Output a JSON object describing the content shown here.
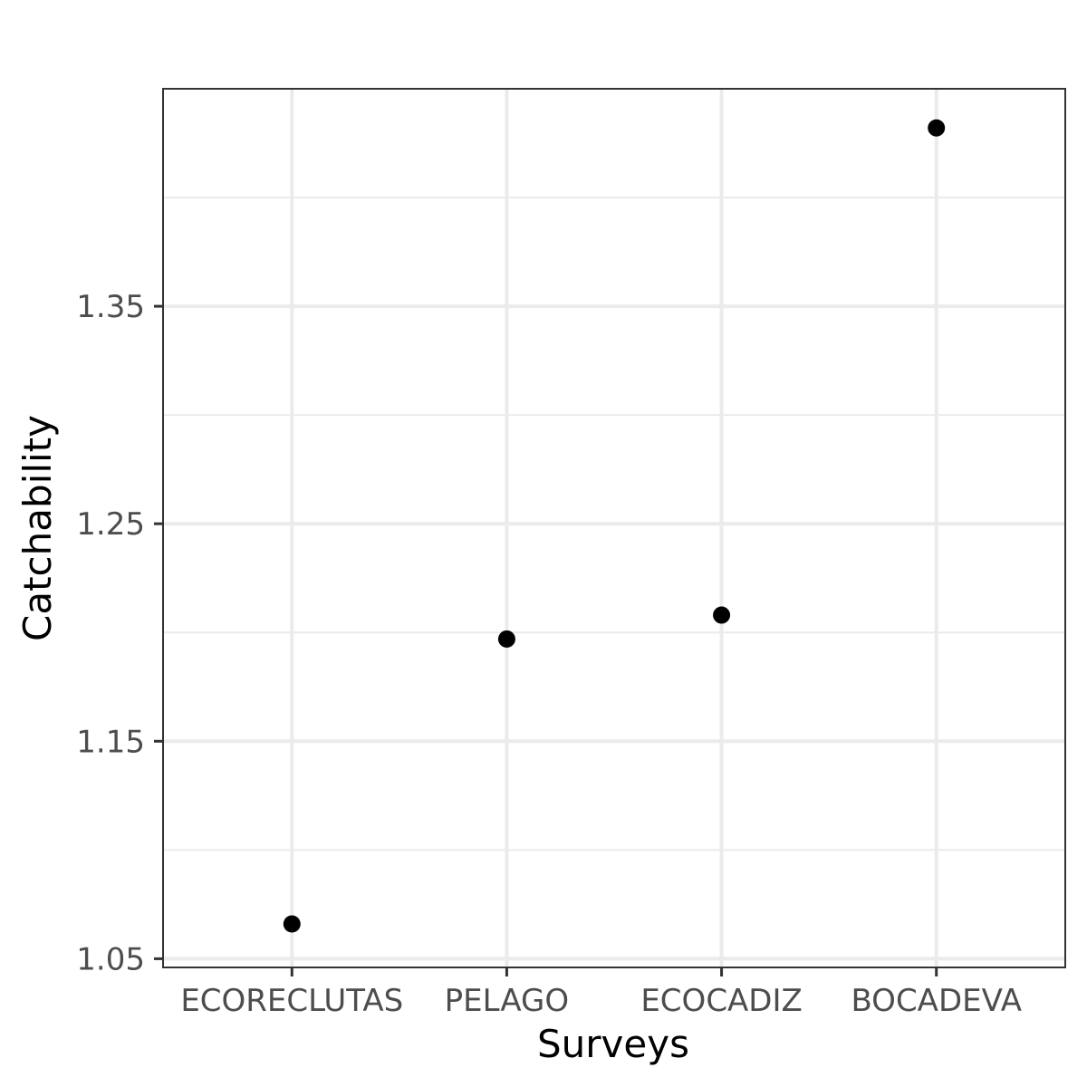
{
  "chart_data": {
    "type": "scatter",
    "title": "",
    "xlabel": "Surveys",
    "ylabel": "Catchability",
    "categories": [
      "ECORECLUTAS",
      "PELAGO",
      "ECOCADIZ",
      "BOCADEVA"
    ],
    "values": [
      1.066,
      1.197,
      1.208,
      1.432
    ],
    "ylim": [
      1.046,
      1.45
    ],
    "yticks": [
      1.05,
      1.15,
      1.25,
      1.35
    ],
    "ytick_labels": [
      "1.05",
      "1.15",
      "1.25",
      "1.35"
    ],
    "grid": true,
    "legend": "none",
    "point_color": "#000000",
    "gridline_color": "#ebebeb",
    "panel_border_color": "#333333"
  }
}
